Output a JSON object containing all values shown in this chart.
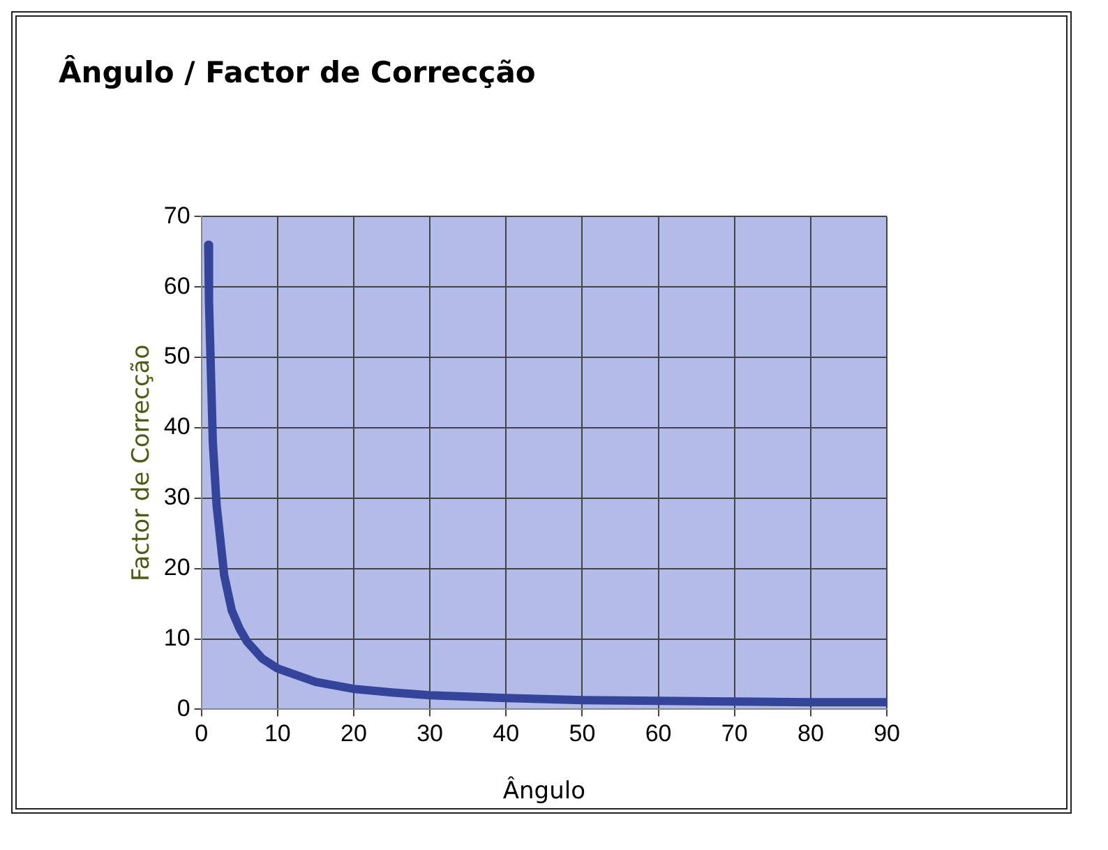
{
  "chart_data": {
    "type": "line",
    "title": "Ângulo / Factor de Correcção",
    "xlabel": "Ângulo",
    "ylabel": "Factor de Correcção",
    "series": [
      {
        "color": "#34449a",
        "x": [
          0.9,
          1,
          1.5,
          2,
          3,
          4,
          5,
          6,
          8,
          10,
          15,
          20,
          25,
          30,
          40,
          50,
          60,
          70,
          80,
          90
        ],
        "values": [
          66,
          58,
          38,
          29,
          19,
          14,
          11.5,
          9.6,
          7.2,
          5.8,
          3.9,
          2.9,
          2.4,
          2,
          1.6,
          1.3,
          1.2,
          1.1,
          1,
          1
        ]
      }
    ],
    "xlim": [
      0,
      90
    ],
    "xticks": [
      0,
      10,
      20,
      30,
      40,
      50,
      60,
      70,
      80,
      90
    ],
    "ylim": [
      0,
      70
    ],
    "yticks": [
      0,
      10,
      20,
      30,
      40,
      50,
      60,
      70
    ],
    "grid": true,
    "legend": false,
    "marker": "none",
    "line_style": "solid"
  }
}
